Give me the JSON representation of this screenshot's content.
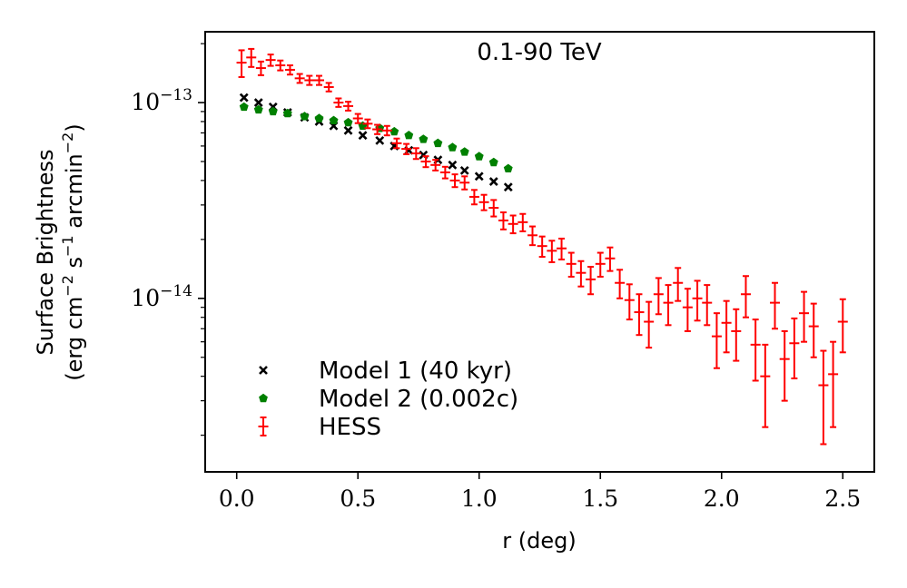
{
  "chart_data": {
    "type": "scatter",
    "title": "0.1-90 TeV",
    "xlabel": "r (deg)",
    "ylabel_line1": "Surface Brightness",
    "ylabel_line2": {
      "t1": "(erg cm",
      "e1": "−2",
      "t2": " s",
      "e2": "−1",
      "t3": " arcmin",
      "e3": "−2",
      "t4": ")"
    },
    "xlim": [
      -0.13,
      2.63
    ],
    "ylim": [
      1.3e-15,
      2.3e-13
    ],
    "yscale": "log",
    "x_ticks": [
      {
        "value": 0.0,
        "label": "0.0"
      },
      {
        "value": 0.5,
        "label": "0.5"
      },
      {
        "value": 1.0,
        "label": "1.0"
      },
      {
        "value": 1.5,
        "label": "1.5"
      },
      {
        "value": 2.0,
        "label": "2.0"
      },
      {
        "value": 2.5,
        "label": "2.5"
      }
    ],
    "y_major_ticks": [
      {
        "value": 1e-13,
        "base": "10",
        "exp": "−13"
      },
      {
        "value": 1e-14,
        "base": "10",
        "exp": "−14"
      }
    ],
    "y_minor_ticks": [
      2e-15,
      3e-15,
      4e-15,
      5e-15,
      6e-15,
      7e-15,
      8e-15,
      9e-15,
      2e-14,
      3e-14,
      4e-14,
      5e-14,
      6e-14,
      7e-14,
      8e-14,
      9e-14,
      2e-13
    ],
    "legend_position": "lower-left",
    "series": [
      {
        "name": "Model 1 (40 kyr)",
        "marker": "x",
        "color": "#000000",
        "x": [
          0.03,
          0.09,
          0.15,
          0.21,
          0.28,
          0.34,
          0.4,
          0.46,
          0.52,
          0.59,
          0.65,
          0.71,
          0.77,
          0.83,
          0.89,
          0.94,
          1.0,
          1.06,
          1.12
        ],
        "y": [
          1.06e-13,
          1e-13,
          9.5e-14,
          8.9e-14,
          8.4e-14,
          8e-14,
          7.6e-14,
          7.2e-14,
          6.8e-14,
          6.4e-14,
          6e-14,
          5.7e-14,
          5.4e-14,
          5.1e-14,
          4.8e-14,
          4.5e-14,
          4.2e-14,
          3.95e-14,
          3.7e-14
        ]
      },
      {
        "name": "Model 2 (0.002c)",
        "marker": "pentagon",
        "color": "#008000",
        "x": [
          0.03,
          0.09,
          0.15,
          0.21,
          0.28,
          0.34,
          0.4,
          0.46,
          0.52,
          0.59,
          0.65,
          0.71,
          0.77,
          0.83,
          0.89,
          0.94,
          1.0,
          1.06,
          1.12
        ],
        "y": [
          9.5e-14,
          9.2e-14,
          9e-14,
          8.8e-14,
          8.5e-14,
          8.3e-14,
          8.1e-14,
          7.9e-14,
          7.6e-14,
          7.4e-14,
          7.1e-14,
          6.8e-14,
          6.5e-14,
          6.2e-14,
          5.9e-14,
          5.6e-14,
          5.3e-14,
          4.95e-14,
          4.6e-14
        ]
      },
      {
        "name": "HESS",
        "marker": "errorbar",
        "color": "#ff0000",
        "x": [
          0.02,
          0.06,
          0.1,
          0.14,
          0.18,
          0.22,
          0.26,
          0.3,
          0.34,
          0.38,
          0.42,
          0.46,
          0.5,
          0.54,
          0.58,
          0.62,
          0.66,
          0.7,
          0.74,
          0.78,
          0.82,
          0.86,
          0.9,
          0.94,
          0.98,
          1.02,
          1.06,
          1.1,
          1.14,
          1.18,
          1.22,
          1.26,
          1.3,
          1.34,
          1.38,
          1.42,
          1.46,
          1.5,
          1.54,
          1.58,
          1.62,
          1.66,
          1.7,
          1.74,
          1.78,
          1.82,
          1.86,
          1.9,
          1.94,
          1.98,
          2.02,
          2.06,
          2.1,
          2.14,
          2.18,
          2.22,
          2.26,
          2.3,
          2.34,
          2.38,
          2.42,
          2.46,
          2.5
        ],
        "y": [
          1.6e-13,
          1.7e-13,
          1.5e-13,
          1.65e-13,
          1.55e-13,
          1.47e-13,
          1.33e-13,
          1.3e-13,
          1.3e-13,
          1.2e-13,
          1e-13,
          9.6e-14,
          8.3e-14,
          7.8e-14,
          7.3e-14,
          7.2e-14,
          6.2e-14,
          5.8e-14,
          5.5e-14,
          5e-14,
          4.8e-14,
          4.4e-14,
          4e-14,
          3.9e-14,
          3.3e-14,
          3.1e-14,
          2.9e-14,
          2.5e-14,
          2.4e-14,
          2.45e-14,
          2.1e-14,
          1.85e-14,
          1.75e-14,
          1.8e-14,
          1.5e-14,
          1.35e-14,
          1.25e-14,
          1.5e-14,
          1.6e-14,
          1.2e-14,
          9.8e-15,
          8.5e-15,
          7.6e-15,
          1.05e-14,
          9.5e-15,
          1.2e-14,
          9e-15,
          1e-14,
          9.5e-15,
          6.4e-15,
          7.5e-15,
          6.8e-15,
          1.05e-14,
          5.8e-15,
          4e-15,
          9.5e-15,
          4.9e-15,
          5.9e-15,
          8.4e-15,
          7.2e-15,
          3.6e-15,
          4.1e-15,
          7.6e-15
        ],
        "yerr": [
          2.5e-14,
          1.8e-14,
          1.2e-14,
          1.1e-14,
          9e-15,
          8e-15,
          7e-15,
          7e-15,
          7e-15,
          6e-15,
          5e-15,
          5e-15,
          4.5e-15,
          4e-15,
          4e-15,
          4e-15,
          3.5e-15,
          3.5e-15,
          3.5e-15,
          3.2e-15,
          3e-15,
          3e-15,
          3e-15,
          3e-15,
          2.8e-15,
          2.8e-15,
          2.8e-15,
          2.5e-15,
          2.5e-15,
          2.5e-15,
          2.3e-15,
          2.2e-15,
          2.2e-15,
          2.2e-15,
          2.1e-15,
          2e-15,
          2e-15,
          2.1e-15,
          2.2e-15,
          2e-15,
          2e-15,
          2e-15,
          2e-15,
          2.2e-15,
          2.2e-15,
          2.3e-15,
          2.2e-15,
          2.3e-15,
          2.2e-15,
          2e-15,
          2.2e-15,
          2e-15,
          2.5e-15,
          2e-15,
          1.8e-15,
          2.5e-15,
          1.9e-15,
          2e-15,
          2.4e-15,
          2.2e-15,
          1.8e-15,
          1.9e-15,
          2.3e-15
        ]
      }
    ]
  }
}
